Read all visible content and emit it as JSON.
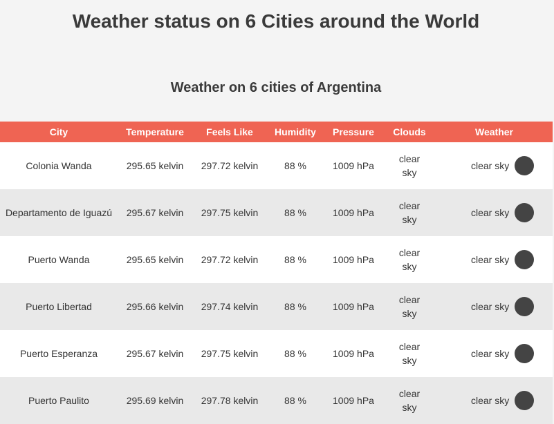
{
  "page": {
    "title": "Weather status on 6 Cities around the World",
    "section_title": "Weather on 6 cities of Argentina"
  },
  "colors": {
    "header_bg": "#ef6453",
    "row_alt_bg": "#e9e9e9",
    "icon": "#444444"
  },
  "table": {
    "headers": [
      "City",
      "Temperature",
      "Feels Like",
      "Humidity",
      "Pressure",
      "Clouds",
      "Weather"
    ],
    "rows": [
      {
        "city": "Colonia Wanda",
        "temperature": "295.65 kelvin",
        "feels_like": "297.72 kelvin",
        "humidity": "88 %",
        "pressure": "1009 hPa",
        "clouds": "clear sky",
        "weather": "clear sky",
        "icon": "weather-icon"
      },
      {
        "city": "Departamento de Iguazú",
        "temperature": "295.67 kelvin",
        "feels_like": "297.75 kelvin",
        "humidity": "88 %",
        "pressure": "1009 hPa",
        "clouds": "clear sky",
        "weather": "clear sky",
        "icon": "weather-icon"
      },
      {
        "city": "Puerto Wanda",
        "temperature": "295.65 kelvin",
        "feels_like": "297.72 kelvin",
        "humidity": "88 %",
        "pressure": "1009 hPa",
        "clouds": "clear sky",
        "weather": "clear sky",
        "icon": "weather-icon"
      },
      {
        "city": "Puerto Libertad",
        "temperature": "295.66 kelvin",
        "feels_like": "297.74 kelvin",
        "humidity": "88 %",
        "pressure": "1009 hPa",
        "clouds": "clear sky",
        "weather": "clear sky",
        "icon": "weather-icon"
      },
      {
        "city": "Puerto Esperanza",
        "temperature": "295.67 kelvin",
        "feels_like": "297.75 kelvin",
        "humidity": "88 %",
        "pressure": "1009 hPa",
        "clouds": "clear sky",
        "weather": "clear sky",
        "icon": "weather-icon"
      },
      {
        "city": "Puerto Paulito",
        "temperature": "295.69 kelvin",
        "feels_like": "297.78 kelvin",
        "humidity": "88 %",
        "pressure": "1009 hPa",
        "clouds": "clear sky",
        "weather": "clear sky",
        "icon": "weather-icon"
      }
    ]
  }
}
